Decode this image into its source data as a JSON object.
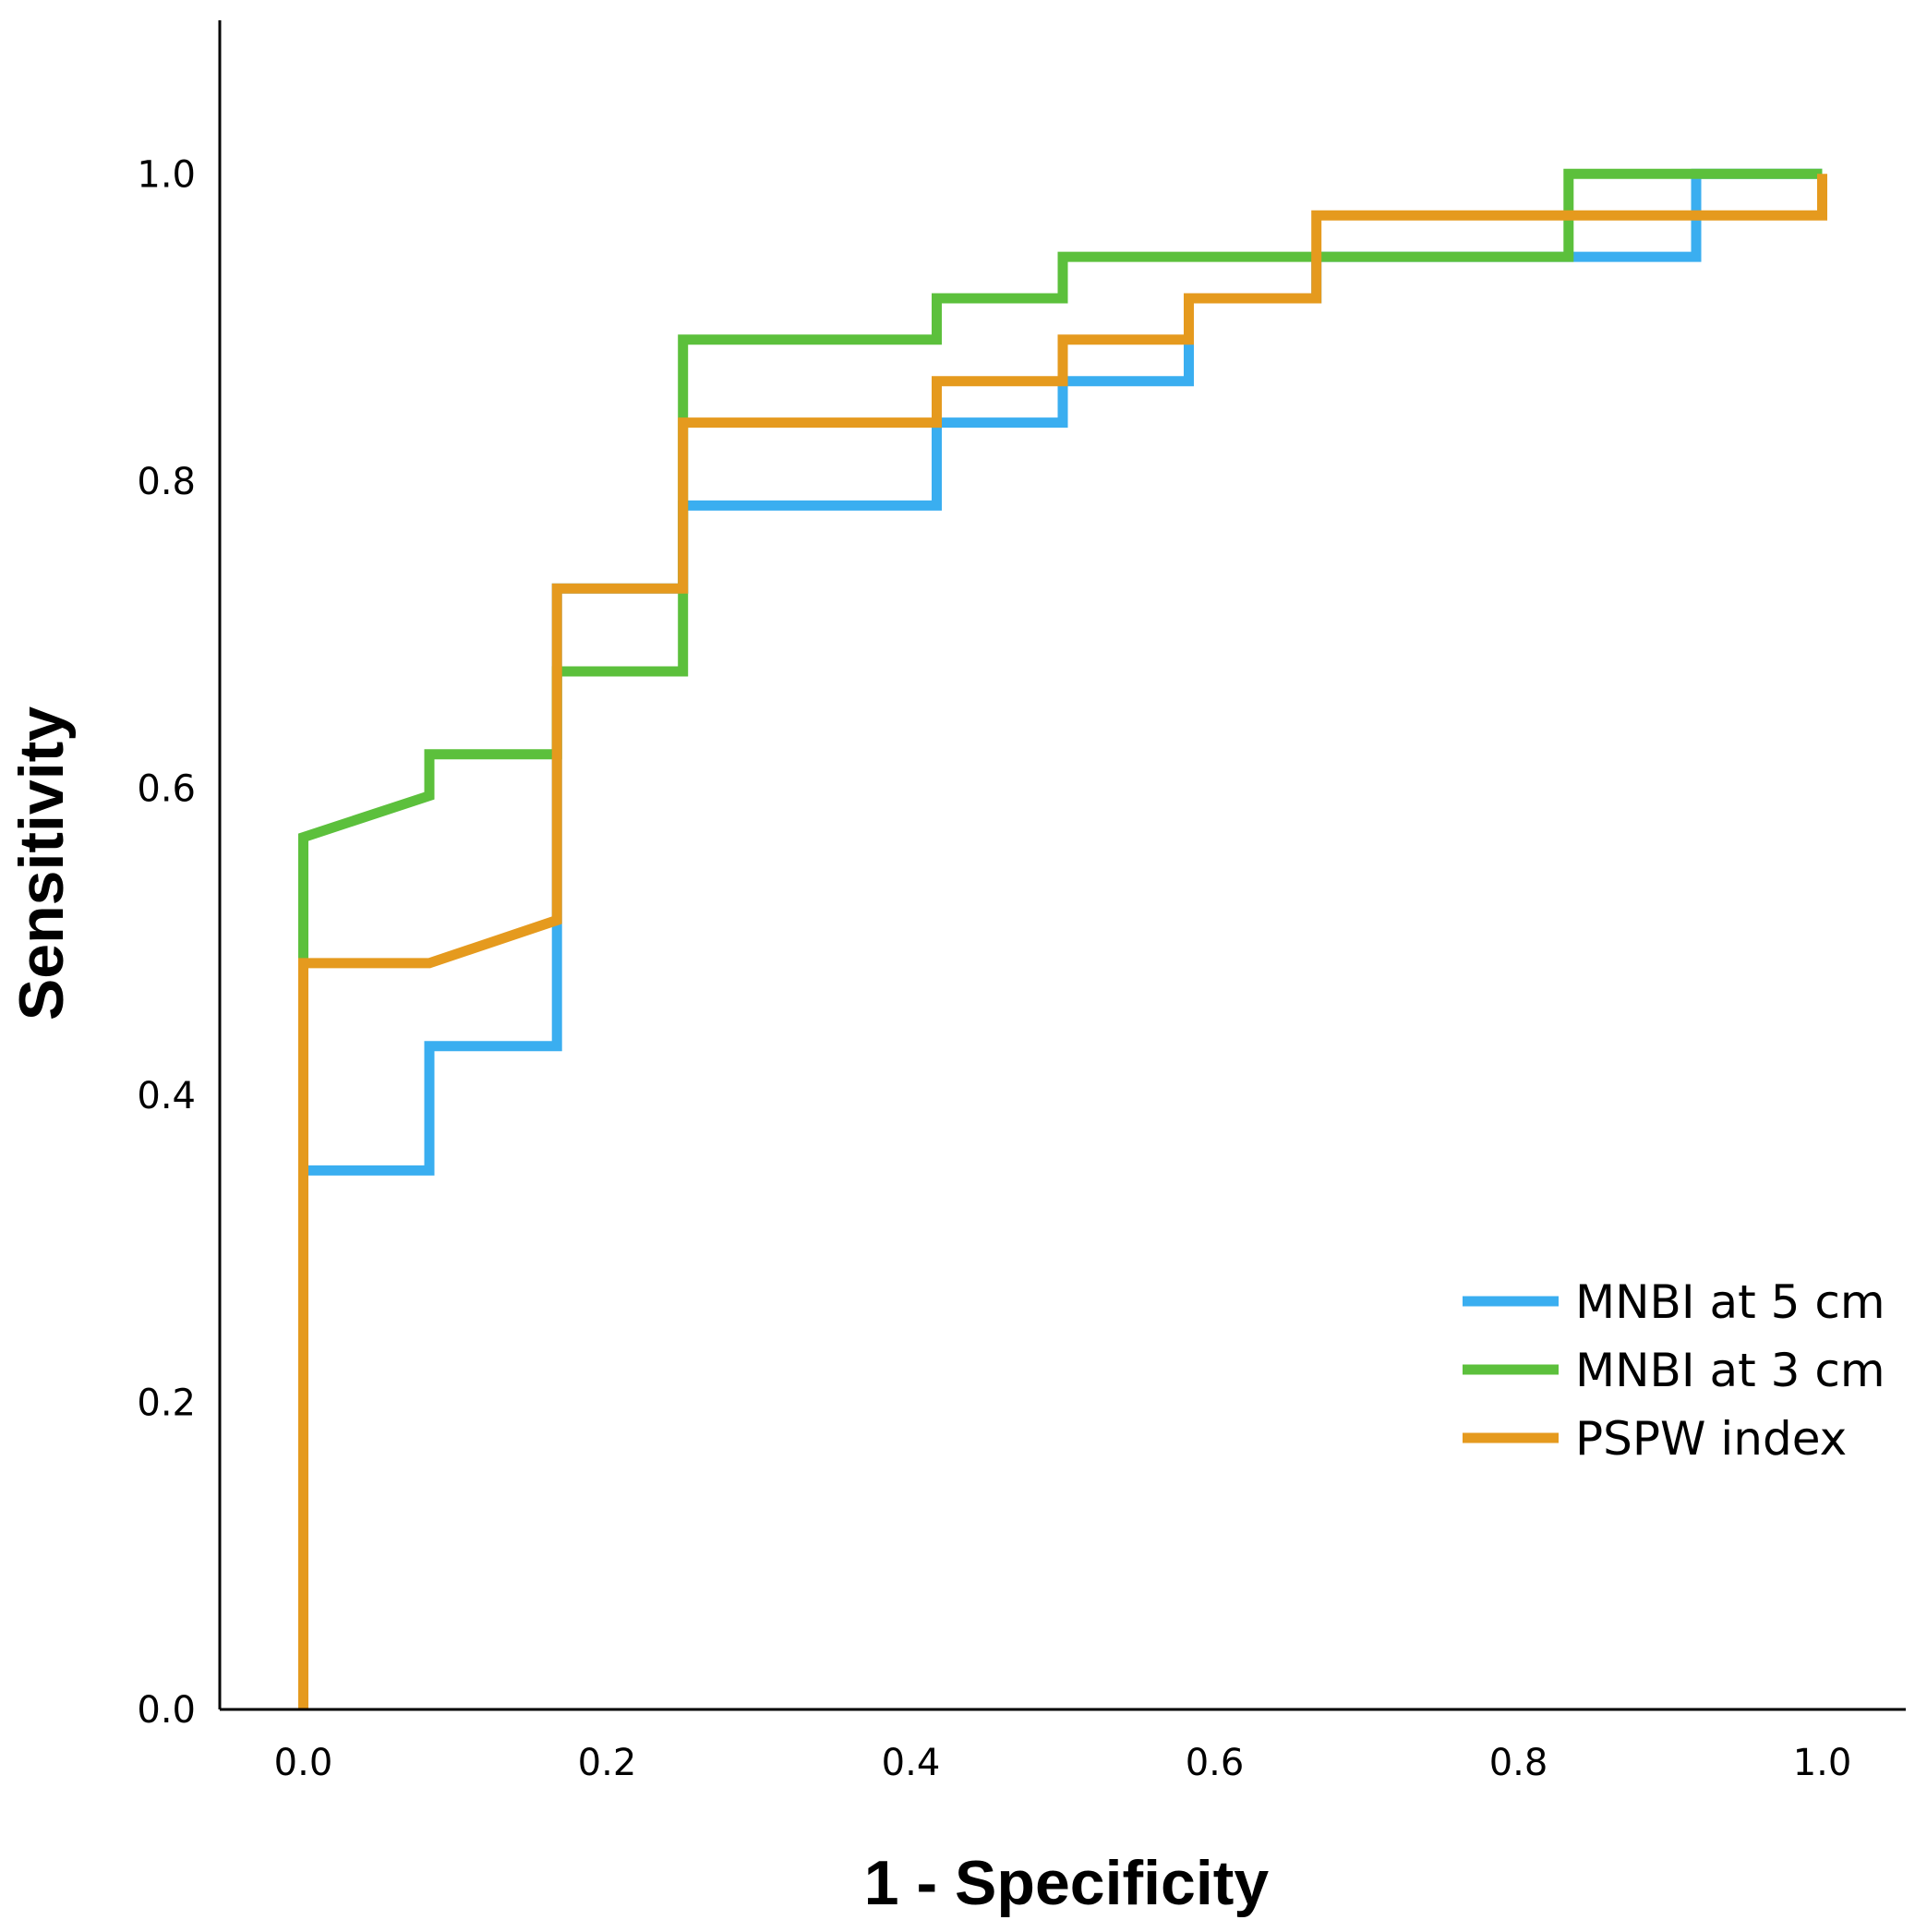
{
  "chart_data": {
    "type": "line",
    "title": "",
    "xlabel": "1 - Specificity",
    "ylabel": "Sensitivity",
    "xlim": [
      -0.055,
      1.055
    ],
    "ylim": [
      0,
      1.1
    ],
    "x_ticks": [
      "0.0",
      "0.2",
      "0.4",
      "0.6",
      "0.8",
      "1.0"
    ],
    "y_ticks": [
      "0.0",
      "0.2",
      "0.4",
      "0.6",
      "0.8",
      "1.0"
    ],
    "grid": false,
    "legend": "bottom-right",
    "series": [
      {
        "name": "MNBI at 5 cm",
        "color": "#3aaef0",
        "points": [
          [
            0,
            0
          ],
          [
            0,
            0.351
          ],
          [
            0.083,
            0.351
          ],
          [
            0.083,
            0.432
          ],
          [
            0.167,
            0.432
          ],
          [
            0.167,
            0.514
          ],
          [
            0.167,
            0.73
          ],
          [
            0.25,
            0.73
          ],
          [
            0.25,
            0.784
          ],
          [
            0.417,
            0.784
          ],
          [
            0.417,
            0.838
          ],
          [
            0.5,
            0.838
          ],
          [
            0.5,
            0.865
          ],
          [
            0.583,
            0.865
          ],
          [
            0.583,
            0.919
          ],
          [
            0.667,
            0.919
          ],
          [
            0.667,
            0.946
          ],
          [
            0.917,
            0.946
          ],
          [
            0.917,
            1.0
          ],
          [
            1.0,
            1.0
          ]
        ]
      },
      {
        "name": "MNBI at 3 cm",
        "color": "#5cc03c",
        "points": [
          [
            0,
            0
          ],
          [
            0,
            0.568
          ],
          [
            0.083,
            0.595
          ],
          [
            0.083,
            0.622
          ],
          [
            0.167,
            0.622
          ],
          [
            0.167,
            0.676
          ],
          [
            0.25,
            0.676
          ],
          [
            0.25,
            0.892
          ],
          [
            0.417,
            0.892
          ],
          [
            0.417,
            0.919
          ],
          [
            0.5,
            0.919
          ],
          [
            0.5,
            0.946
          ],
          [
            0.833,
            0.946
          ],
          [
            0.833,
            1.0
          ],
          [
            1.0,
            1.0
          ]
        ]
      },
      {
        "name": "PSPW index",
        "color": "#e59a1e",
        "points": [
          [
            0,
            0
          ],
          [
            0,
            0.486
          ],
          [
            0.083,
            0.486
          ],
          [
            0.167,
            0.514
          ],
          [
            0.167,
            0.73
          ],
          [
            0.25,
            0.73
          ],
          [
            0.25,
            0.838
          ],
          [
            0.417,
            0.838
          ],
          [
            0.417,
            0.865
          ],
          [
            0.5,
            0.865
          ],
          [
            0.5,
            0.892
          ],
          [
            0.583,
            0.892
          ],
          [
            0.583,
            0.919
          ],
          [
            0.667,
            0.919
          ],
          [
            0.667,
            0.973
          ],
          [
            1.0,
            0.973
          ],
          [
            1.0,
            1.0
          ]
        ]
      }
    ]
  }
}
